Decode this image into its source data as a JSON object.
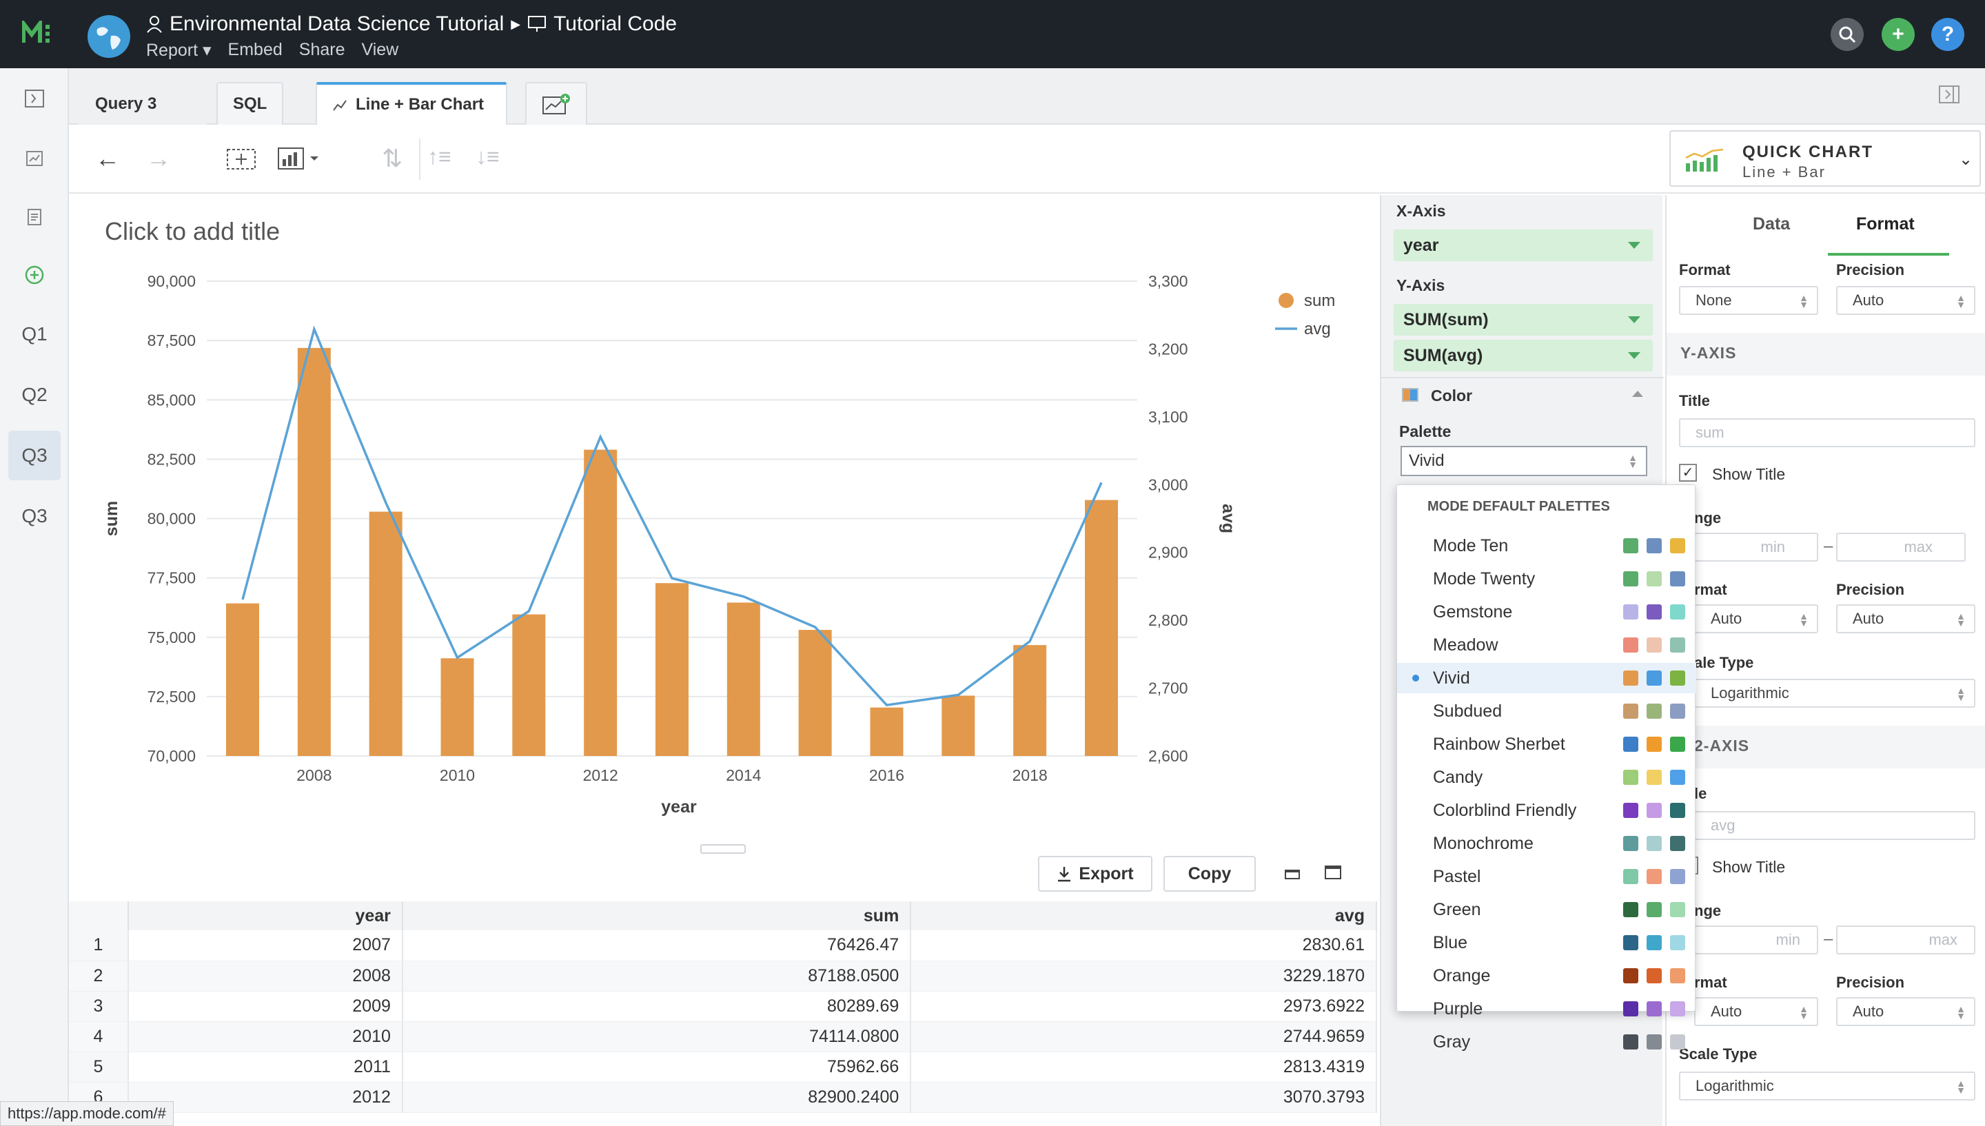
{
  "app": {
    "report_title": "Environmental Data Science Tutorial",
    "breadcrumb_page": "Tutorial Code",
    "menu": [
      "Report",
      "Embed",
      "Share",
      "View"
    ]
  },
  "rail": [
    "Q1",
    "Q2",
    "Q3",
    "Q3"
  ],
  "tabs": [
    "Query 3",
    "SQL",
    "Line + Bar Chart"
  ],
  "quick_chart": {
    "title": "QUICK CHART",
    "subtitle": "Line + Bar"
  },
  "chart_title_placeholder": "Click to add title",
  "chart_data": {
    "type": "bar",
    "x": [
      2007,
      2008,
      2009,
      2010,
      2011,
      2012,
      2013,
      2014,
      2015,
      2016,
      2017,
      2018,
      2019
    ],
    "series": [
      {
        "name": "sum",
        "kind": "bar",
        "axis": "left",
        "color": "#e3994b",
        "values": [
          76426.47,
          87188.05,
          80289.69,
          74114.08,
          75962.66,
          82900.24,
          77280,
          76460,
          75310,
          72040,
          72540,
          74670,
          80780
        ]
      },
      {
        "name": "avg",
        "kind": "line",
        "axis": "right",
        "color": "#5ba3d6",
        "values": [
          2830.61,
          3229.187,
          2973.6922,
          2744.9659,
          2813.4319,
          3070.3793,
          2862,
          2835,
          2790,
          2675,
          2690,
          2769,
          3003
        ]
      }
    ],
    "xlabel": "year",
    "ylabel": "sum",
    "y2label": "avg",
    "ylim": [
      70000,
      90000
    ],
    "y2lim": [
      2600,
      3300
    ],
    "yticks": [
      "70,000",
      "72,500",
      "75,000",
      "77,500",
      "80,000",
      "82,500",
      "85,000",
      "87,500",
      "90,000"
    ],
    "y2ticks": [
      "2,600",
      "2,700",
      "2,800",
      "2,900",
      "3,000",
      "3,100",
      "3,200",
      "3,300"
    ],
    "xticks": [
      "2008",
      "2010",
      "2012",
      "2014",
      "2016",
      "2018"
    ],
    "legend": [
      "sum",
      "avg"
    ],
    "legend_position": "top-right",
    "grid": true
  },
  "results": {
    "export_label": "Export",
    "copy_label": "Copy",
    "columns": [
      "year",
      "sum",
      "avg"
    ],
    "rows": [
      [
        "1",
        "2007",
        "76426.47",
        "2830.61"
      ],
      [
        "2",
        "2008",
        "87188.0500",
        "3229.1870"
      ],
      [
        "3",
        "2009",
        "80289.69",
        "2973.6922"
      ],
      [
        "4",
        "2010",
        "74114.0800",
        "2744.9659"
      ],
      [
        "5",
        "2011",
        "75962.66",
        "2813.4319"
      ],
      [
        "6",
        "2012",
        "82900.2400",
        "3070.3793"
      ]
    ]
  },
  "fields": {
    "x_axis_label": "X-Axis",
    "x_field": "year",
    "y_axis_label": "Y-Axis",
    "y_fields": [
      "SUM(sum)",
      "SUM(avg)"
    ],
    "color_label": "Color",
    "palette_label": "Palette",
    "palette_value": "Vivid"
  },
  "palettes": {
    "header": "MODE DEFAULT PALETTES",
    "selected": "Vivid",
    "items": [
      {
        "name": "Mode Ten",
        "colors": [
          "#5aac6b",
          "#6c8fbf",
          "#e8b63c"
        ]
      },
      {
        "name": "Mode Twenty",
        "colors": [
          "#5aac6b",
          "#b6dca9",
          "#6c8fbf"
        ]
      },
      {
        "name": "Gemstone",
        "colors": [
          "#b8b4e8",
          "#7b5bbf",
          "#7fd8cc"
        ]
      },
      {
        "name": "Meadow",
        "colors": [
          "#ee8a7a",
          "#efc4ae",
          "#8fc2b0"
        ]
      },
      {
        "name": "Vivid",
        "colors": [
          "#e3994b",
          "#4a9be0",
          "#7cb342"
        ]
      },
      {
        "name": "Subdued",
        "colors": [
          "#c99b6a",
          "#9ab57a",
          "#8b9dc3"
        ]
      },
      {
        "name": "Rainbow Sherbet",
        "colors": [
          "#3c7fc8",
          "#ef9b2c",
          "#3aa84a"
        ]
      },
      {
        "name": "Candy",
        "colors": [
          "#9ccd78",
          "#f1cf62",
          "#4fa0e8"
        ]
      },
      {
        "name": "Colorblind Friendly",
        "colors": [
          "#7a3bbf",
          "#c59be6",
          "#2a6e70"
        ]
      },
      {
        "name": "Monochrome",
        "colors": [
          "#5e9c9c",
          "#a7cfcf",
          "#3f6f6f"
        ]
      },
      {
        "name": "Pastel",
        "colors": [
          "#7fc8a8",
          "#f09a7a",
          "#8fa3d3"
        ]
      },
      {
        "name": "Green",
        "colors": [
          "#2d6a3e",
          "#5aac6b",
          "#9fdab0"
        ]
      },
      {
        "name": "Blue",
        "colors": [
          "#2b6688",
          "#3fa7cc",
          "#9fd8e4"
        ]
      },
      {
        "name": "Orange",
        "colors": [
          "#9a3b14",
          "#d9612a",
          "#ef9b6a"
        ]
      },
      {
        "name": "Purple",
        "colors": [
          "#5a2ea6",
          "#9b6bd1",
          "#c8a8e8"
        ]
      },
      {
        "name": "Gray",
        "colors": [
          "#4a5058",
          "#848a92",
          "#c6cad0"
        ]
      }
    ]
  },
  "format_panel": {
    "tabs": [
      "Data",
      "Format"
    ],
    "format_label": "Format",
    "precision_label": "Precision",
    "format_value": "None",
    "precision_value": "Auto",
    "y_section": "Y-AXIS",
    "title_label": "Title",
    "y_title_placeholder": "sum",
    "show_title": "Show Title",
    "range_label": "nge",
    "min_ph": "min",
    "max_ph": "max",
    "format_cut": "rmat",
    "y_format_value": "Auto",
    "scale_cut": "ale Type",
    "scale_value": "Logarithmic",
    "y2_section": "2-AXIS",
    "title_cut": "le",
    "y2_title_placeholder": "avg",
    "scale_label": "Scale Type"
  },
  "status_url": "https://app.mode.com/#"
}
